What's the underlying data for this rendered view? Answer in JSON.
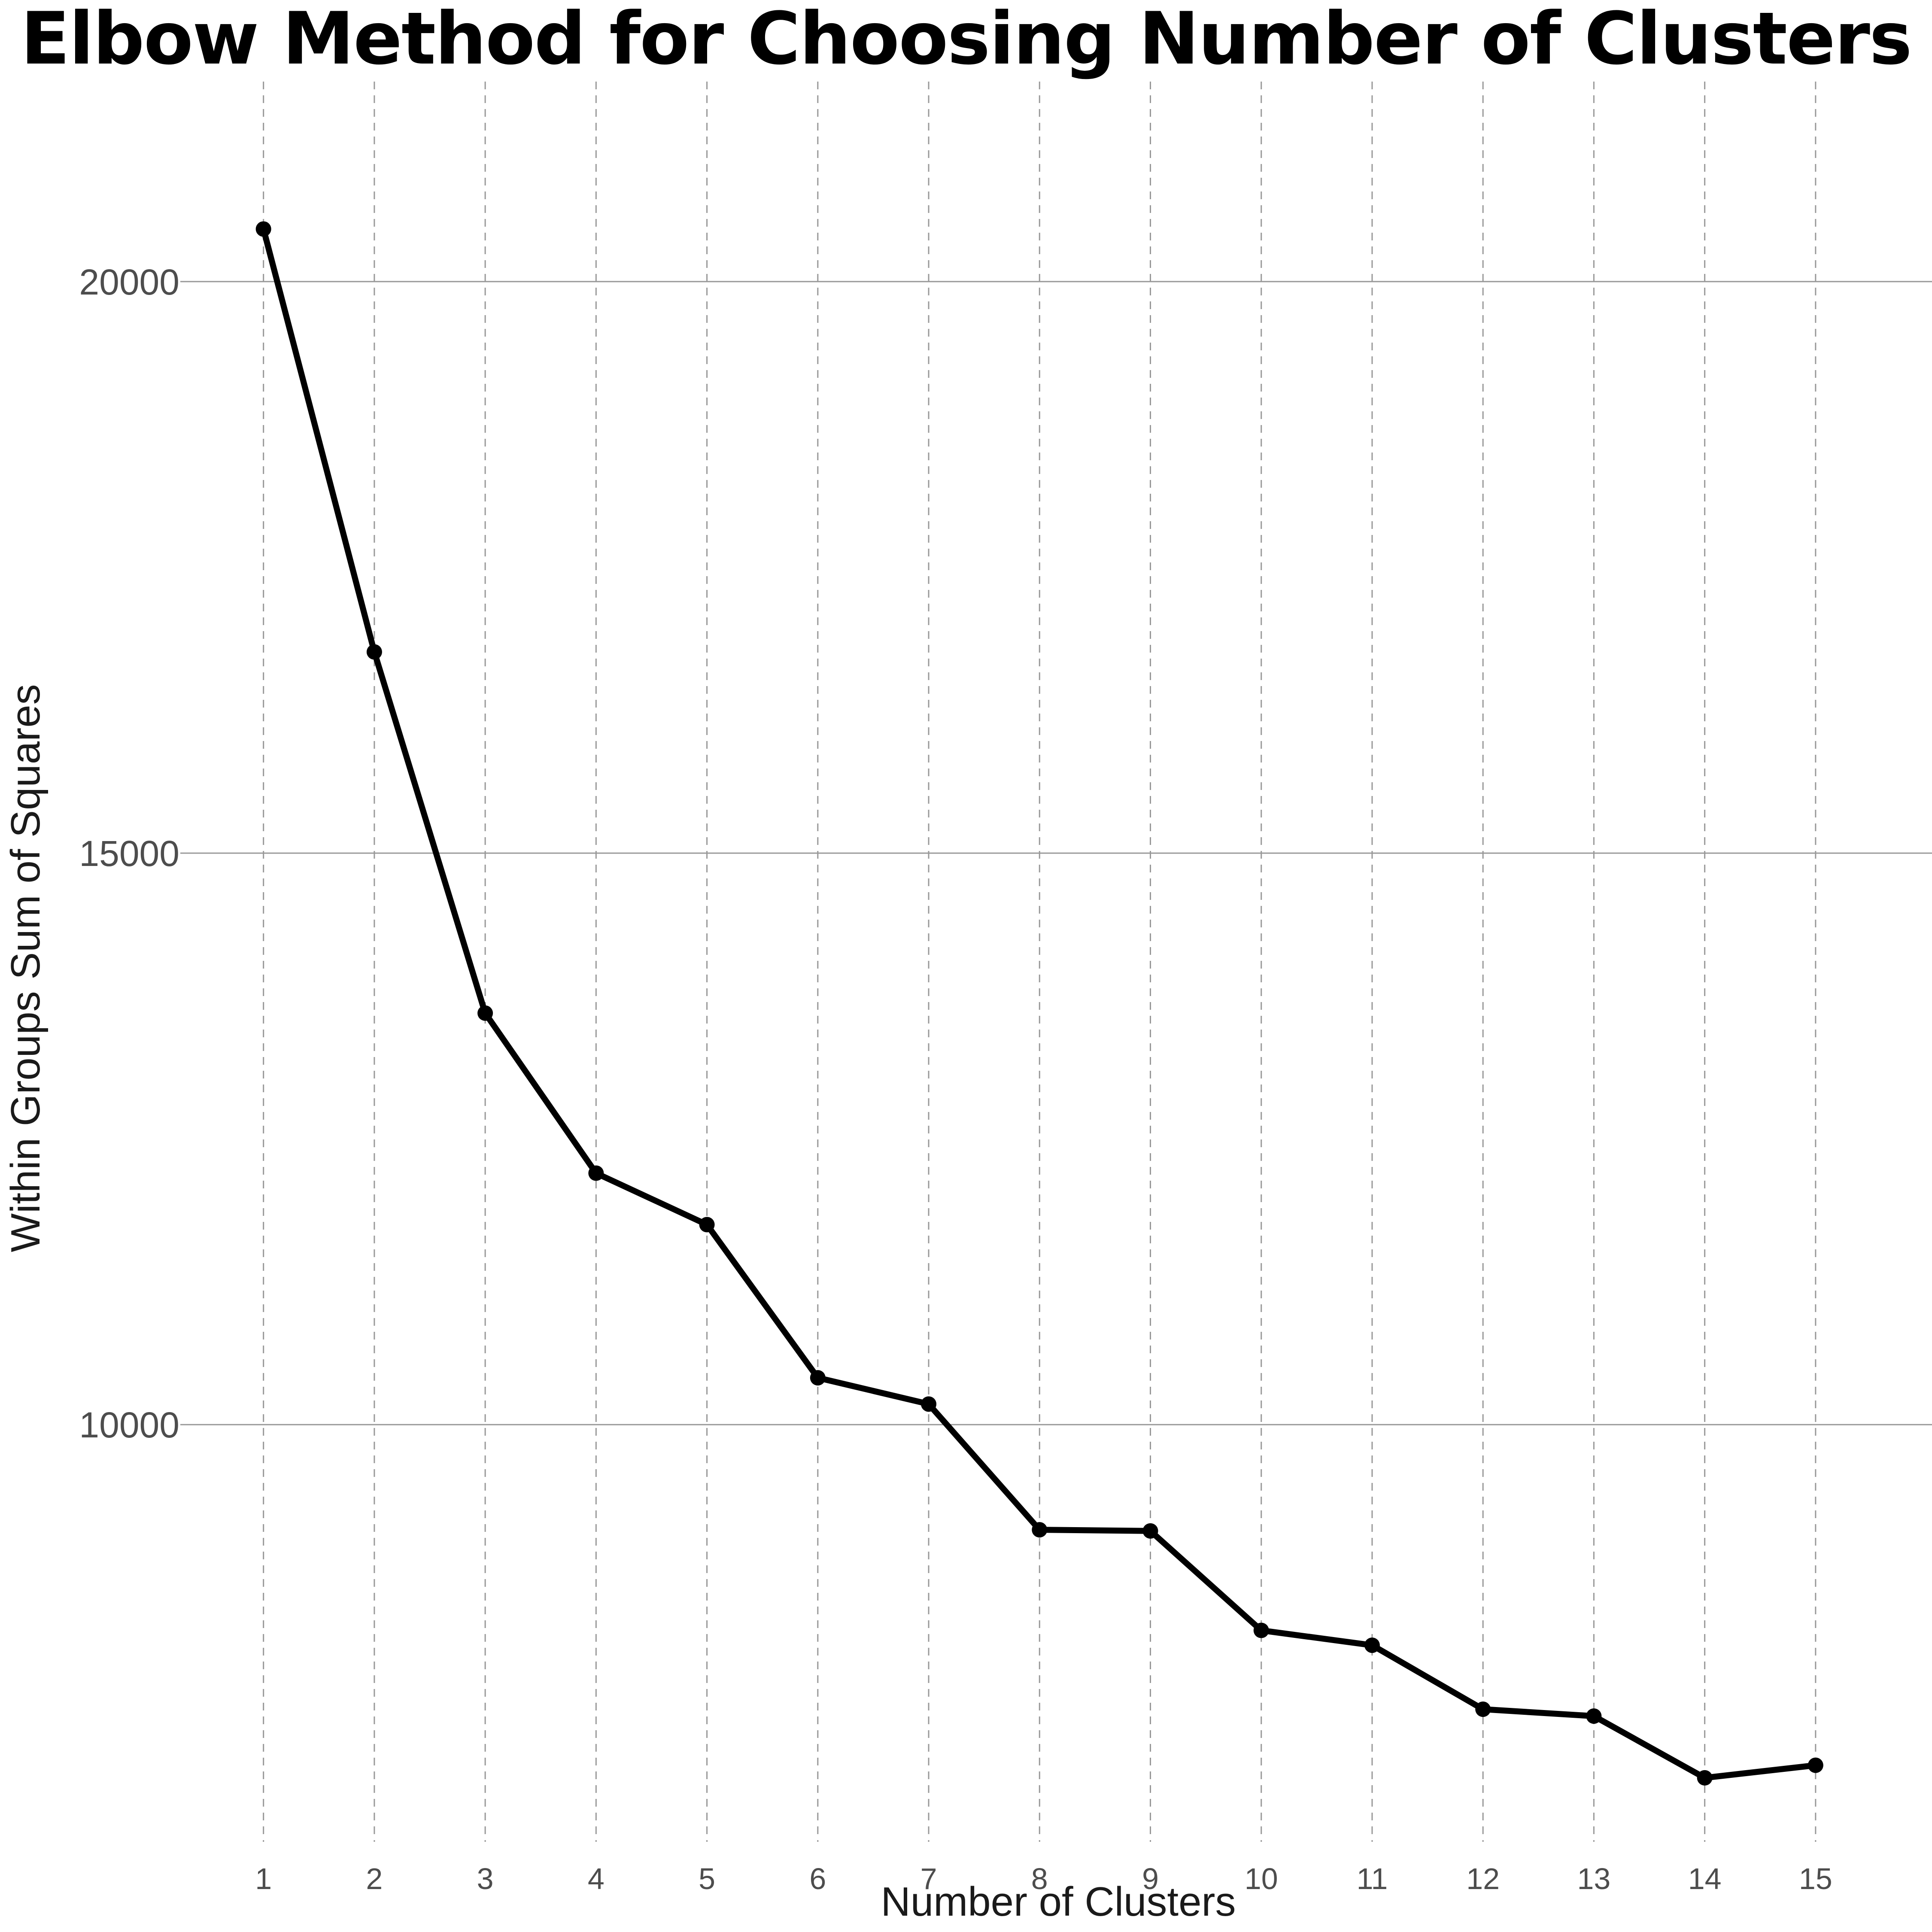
{
  "chart_data": {
    "type": "line",
    "title": "Elbow Method for Choosing Number of Clusters",
    "xlabel": "Number of Clusters",
    "ylabel": "Within Groups Sum of Squares",
    "x": [
      1,
      2,
      3,
      4,
      5,
      6,
      7,
      8,
      9,
      10,
      11,
      12,
      13,
      14,
      15
    ],
    "series": [
      {
        "values": [
          20460,
          16760,
          13600,
          12200,
          11750,
          10410,
          10180,
          9080,
          9070,
          8200,
          8070,
          7510,
          7450,
          6910,
          7020
        ]
      }
    ],
    "x_ticks": [
      "1",
      "2",
      "3",
      "4",
      "5",
      "6",
      "7",
      "8",
      "9",
      "10",
      "11",
      "12",
      "13",
      "14",
      "15"
    ],
    "y_ticks": [
      "10000",
      "15000",
      "20000"
    ],
    "y_tick_values": [
      10000,
      15000,
      20000
    ],
    "xlim": [
      0.25,
      16.05
    ],
    "ylim": [
      6350,
      21750
    ],
    "grid": {
      "horizontal": "solid",
      "vertical": "dashed"
    },
    "legend": "none",
    "colors": {
      "line": "#000000",
      "grid": "#999999",
      "background": "#ffffff"
    }
  }
}
